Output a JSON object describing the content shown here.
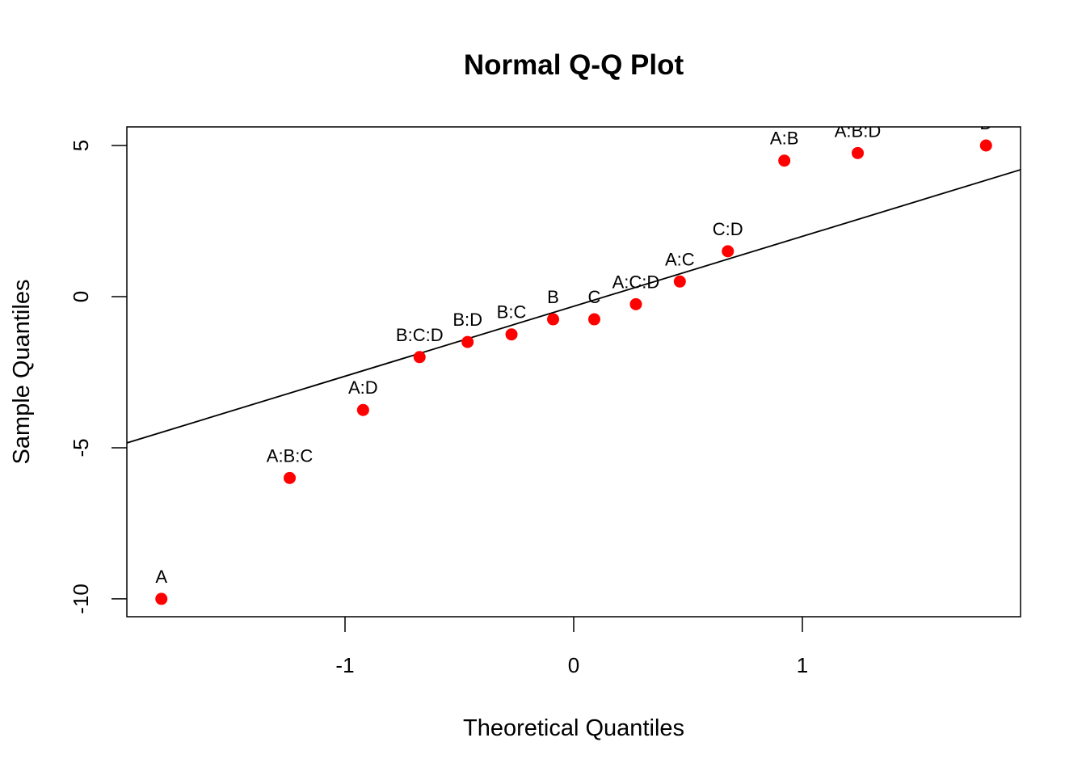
{
  "chart_data": {
    "type": "scatter",
    "title": "Normal Q-Q Plot",
    "xlabel": "Theoretical Quantiles",
    "ylabel": "Sample Quantiles",
    "xlim": [
      -1.954,
      1.954
    ],
    "ylim": [
      -10.59,
      5.615
    ],
    "xticks": [
      -1,
      0,
      1
    ],
    "xtick_labels": [
      "-1",
      "0",
      "1"
    ],
    "yticks": [
      -10,
      -5,
      0,
      5
    ],
    "ytick_labels": [
      "-10",
      "-5",
      "0",
      "5"
    ],
    "grid": false,
    "point_color": "#ff0000",
    "points": [
      {
        "label": "A",
        "x": -1.803,
        "y": -10.0
      },
      {
        "label": "A:B:C",
        "x": -1.242,
        "y": -6.0
      },
      {
        "label": "A:D",
        "x": -0.921,
        "y": -3.75
      },
      {
        "label": "B:C:D",
        "x": -0.674,
        "y": -2.0
      },
      {
        "label": "B:D",
        "x": -0.464,
        "y": -1.5
      },
      {
        "label": "B:C",
        "x": -0.272,
        "y": -1.25
      },
      {
        "label": "B",
        "x": -0.09,
        "y": -0.75
      },
      {
        "label": "C",
        "x": 0.09,
        "y": -0.75
      },
      {
        "label": "A:C:D",
        "x": 0.272,
        "y": -0.25
      },
      {
        "label": "A:C",
        "x": 0.464,
        "y": 0.5
      },
      {
        "label": "C:D",
        "x": 0.674,
        "y": 1.5
      },
      {
        "label": "A:B",
        "x": 0.921,
        "y": 4.5
      },
      {
        "label": "A:B:D",
        "x": 1.242,
        "y": 4.75
      },
      {
        "label": "D",
        "x": 1.803,
        "y": 5.0
      }
    ],
    "reference_line": {
      "intercept": -0.32,
      "slope": 2.313
    }
  }
}
